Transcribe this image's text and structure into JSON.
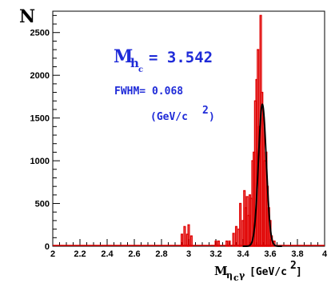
{
  "chart_data": {
    "type": "histogram",
    "ylabel": "N",
    "xlabel": {
      "main": "M",
      "sub1": "η",
      "sub2": "c",
      "sub3": "γ",
      "unit": "[GeV/c",
      "unit_sup": "2",
      "unit_end": "]"
    },
    "xlim": [
      2.0,
      4.0
    ],
    "ylim": [
      0,
      2750
    ],
    "x_ticks": [
      "2",
      "2.2",
      "2.4",
      "2.6",
      "2.8",
      "3",
      "3.2",
      "3.4",
      "3.6",
      "3.8",
      "4"
    ],
    "y_ticks": [
      "0",
      "500",
      "1000",
      "1500",
      "2000",
      "2500"
    ],
    "annotations": {
      "mass_symbol": "M",
      "mass_sub1": "h",
      "mass_sub2": "c",
      "mass_value": "= 3.542",
      "fwhm": "FWHM= 0.068",
      "units": "(GeV/c",
      "units_sup": "2",
      "units_end": ")"
    },
    "colors": {
      "histogram": "#e00000",
      "fit": "#000000",
      "annotation": "#1f2bd8"
    },
    "series": [
      {
        "style": "histogram",
        "x": [
          2.94,
          2.95,
          2.96,
          2.97,
          2.98,
          2.99,
          3.0,
          3.01,
          3.02,
          3.03,
          3.04,
          3.2,
          3.21,
          3.22,
          3.24,
          3.28,
          3.3,
          3.33,
          3.35,
          3.37,
          3.38,
          3.4,
          3.41,
          3.42,
          3.43,
          3.44,
          3.45,
          3.46,
          3.47,
          3.48,
          3.49,
          3.5,
          3.51,
          3.52,
          3.53,
          3.54,
          3.55,
          3.56,
          3.57,
          3.58,
          3.59,
          3.6,
          3.61,
          3.62,
          3.63,
          3.64
        ],
        "values": [
          0,
          140,
          0,
          230,
          0,
          140,
          250,
          0,
          120,
          0,
          0,
          60,
          0,
          60,
          0,
          60,
          60,
          150,
          230,
          200,
          500,
          300,
          650,
          450,
          580,
          360,
          600,
          560,
          1000,
          1100,
          1700,
          1950,
          2300,
          1400,
          2700,
          1800,
          1500,
          1000,
          1100,
          700,
          450,
          300,
          120,
          0,
          60,
          0
        ]
      },
      {
        "style": "fit",
        "mean": 3.542,
        "fwhm": 0.068,
        "peak": 1660
      }
    ]
  }
}
